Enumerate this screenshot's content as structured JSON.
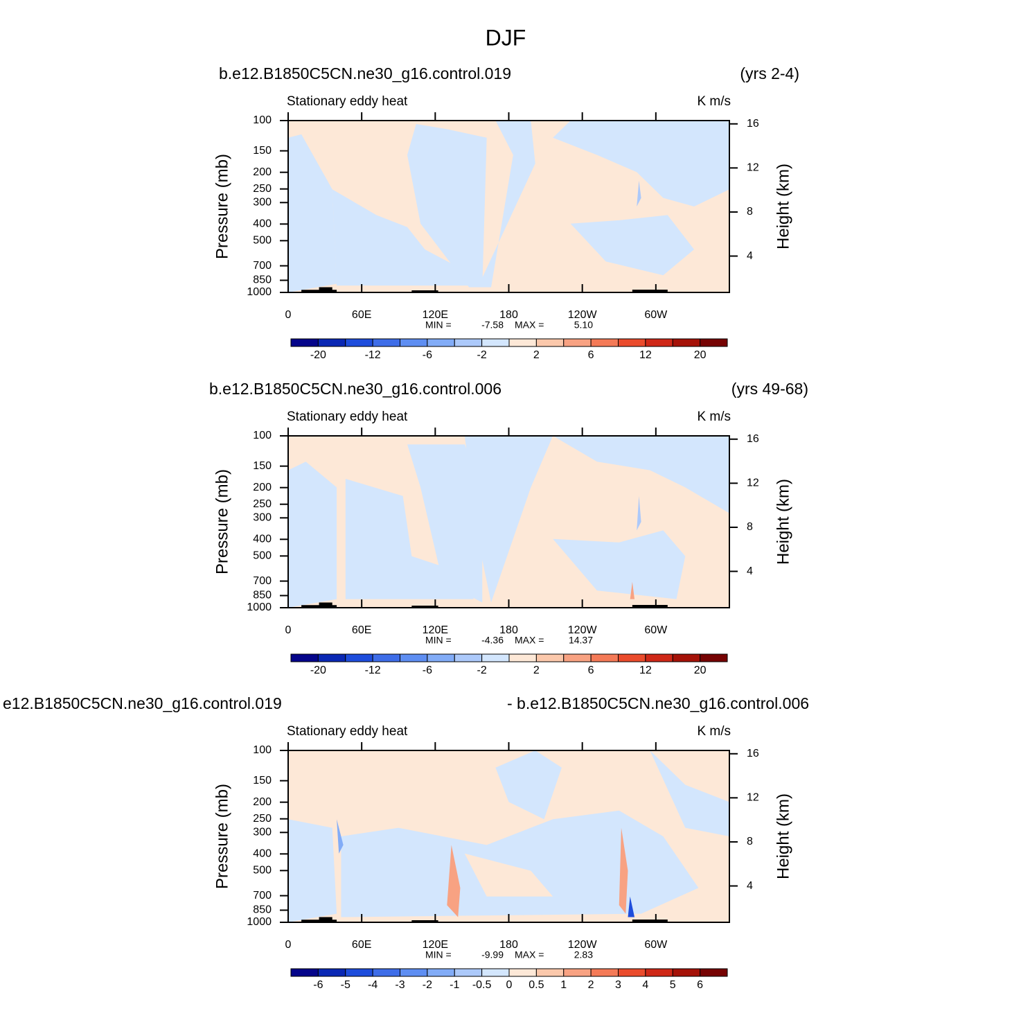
{
  "title": "DJF",
  "chart_data": [
    {
      "type": "contour",
      "title": "b.e12.B1850C5CN.ne30_g16.control.019",
      "title_right": "(yrs 2-4)",
      "subtitle": "Stationary eddy heat",
      "units": "K m/s",
      "ylabel": "Pressure (mb)",
      "y2label": "Height (km)",
      "xlim": [
        0,
        360
      ],
      "xticks": [
        0,
        {
          "value": 60,
          "label": "60E"
        },
        {
          "value": 120,
          "label": "120E"
        },
        180,
        {
          "value": 240,
          "label": "120W"
        },
        {
          "value": 300,
          "label": "60W"
        }
      ],
      "ylim": [
        1000,
        100
      ],
      "yscale": "log",
      "yticks": [
        100,
        150,
        200,
        250,
        300,
        400,
        500,
        700,
        850,
        1000
      ],
      "y2lim": [
        0.7,
        16.3
      ],
      "y2ticks": [
        4,
        8,
        12,
        16
      ],
      "min_text": "MIN =",
      "min": -7.58,
      "max_text": "MAX =",
      "max": {
        "value": 5.1,
        "label": "5.10"
      },
      "colorbar": {
        "colors": [
          "#05058a",
          "#0a28b4",
          "#1e4ddc",
          "#3e6de8",
          "#5e8ef2",
          "#82acf7",
          "#acc9fa",
          "#d3e6fd",
          "#fde8d7",
          "#fbc8ab",
          "#f8a282",
          "#f47a57",
          "#ea4b2c",
          "#cf2817",
          "#a51208",
          "#760303"
        ],
        "levels": [
          -20,
          -12,
          -6,
          -2,
          2,
          6,
          12,
          20
        ]
      }
    },
    {
      "type": "contour",
      "title": "b.e12.B1850C5CN.ne30_g16.control.006",
      "title_right": "(yrs 49-68)",
      "subtitle": "Stationary eddy heat",
      "units": "K m/s",
      "ylabel": "Pressure (mb)",
      "y2label": "Height (km)",
      "xlim": [
        0,
        360
      ],
      "xticks": [
        0,
        {
          "value": 60,
          "label": "60E"
        },
        {
          "value": 120,
          "label": "120E"
        },
        180,
        {
          "value": 240,
          "label": "120W"
        },
        {
          "value": 300,
          "label": "60W"
        }
      ],
      "ylim": [
        1000,
        100
      ],
      "yscale": "log",
      "yticks": [
        100,
        150,
        200,
        250,
        300,
        400,
        500,
        700,
        850,
        1000
      ],
      "y2lim": [
        0.7,
        16.3
      ],
      "y2ticks": [
        4,
        8,
        12,
        16
      ],
      "min_text": "MIN =",
      "min": -4.36,
      "max_text": "MAX =",
      "max": 14.37,
      "colorbar": {
        "colors": [
          "#05058a",
          "#0a28b4",
          "#1e4ddc",
          "#3e6de8",
          "#5e8ef2",
          "#82acf7",
          "#acc9fa",
          "#d3e6fd",
          "#fde8d7",
          "#fbc8ab",
          "#f8a282",
          "#f47a57",
          "#ea4b2c",
          "#cf2817",
          "#a51208",
          "#760303"
        ],
        "levels": [
          -20,
          -12,
          -6,
          -2,
          2,
          6,
          12,
          20
        ]
      }
    },
    {
      "type": "contour",
      "title": "e12.B1850C5CN.ne30_g16.control.019",
      "title_right": "- b.e12.B1850C5CN.ne30_g16.control.006",
      "subtitle": "Stationary eddy heat",
      "units": "K m/s",
      "ylabel": "Pressure (mb)",
      "y2label": "Height (km)",
      "xlim": [
        0,
        360
      ],
      "xticks": [
        0,
        {
          "value": 60,
          "label": "60E"
        },
        {
          "value": 120,
          "label": "120E"
        },
        180,
        {
          "value": 240,
          "label": "120W"
        },
        {
          "value": 300,
          "label": "60W"
        }
      ],
      "ylim": [
        1000,
        100
      ],
      "yscale": "log",
      "yticks": [
        100,
        150,
        200,
        250,
        300,
        400,
        500,
        700,
        850,
        1000
      ],
      "y2lim": [
        0.7,
        16.3
      ],
      "y2ticks": [
        4,
        8,
        12,
        16
      ],
      "min_text": "MIN =",
      "min": -9.99,
      "max_text": "MAX =",
      "max": 2.83,
      "colorbar": {
        "colors": [
          "#05058a",
          "#0a28b4",
          "#1e4ddc",
          "#3e6de8",
          "#5e8ef2",
          "#82acf7",
          "#acc9fa",
          "#d3e6fd",
          "#fde8d7",
          "#fbc8ab",
          "#f8a282",
          "#f47a57",
          "#ea4b2c",
          "#cf2817",
          "#a51208",
          "#760303"
        ],
        "levels": [
          -6,
          -5,
          -4,
          -3,
          -2,
          -1,
          -0.5,
          0,
          0.5,
          1,
          2,
          3,
          4,
          5,
          6
        ]
      }
    }
  ]
}
